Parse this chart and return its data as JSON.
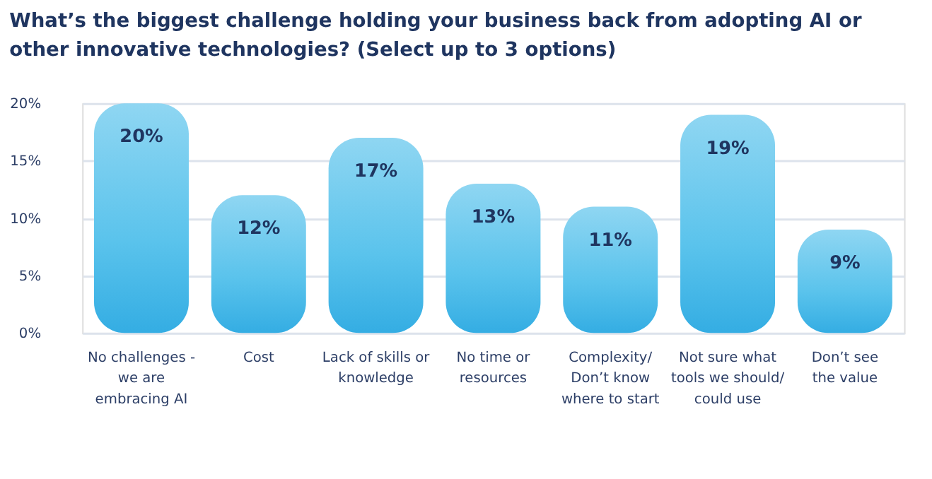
{
  "chart_data": {
    "type": "bar",
    "title": [
      "What’s the biggest challenge holding your business back from adopting AI or",
      "other innovative technologies? (Select up to 3 options)"
    ],
    "categories": [
      "No challenges -\nwe are\nembracing AI",
      "Cost",
      "Lack of skills or\nknowledge",
      "No time or\nresources",
      "Complexity/\nDon’t know\nwhere to start",
      "Not sure what\ntools we should/\ncould use",
      "Don’t see\nthe value"
    ],
    "values": [
      20,
      12,
      17,
      13,
      11,
      19,
      9
    ],
    "value_labels": [
      "20%",
      "12%",
      "17%",
      "13%",
      "11%",
      "19%",
      "9%"
    ],
    "color": "#5ac3ec",
    "ylim": [
      0,
      20
    ],
    "yticks": [
      {
        "value": 0,
        "label": "0%"
      },
      {
        "value": 5,
        "label": "5%"
      },
      {
        "value": 10,
        "label": "10%"
      },
      {
        "value": 15,
        "label": "15%"
      },
      {
        "value": 20,
        "label": "20%"
      }
    ],
    "grid": "y"
  }
}
